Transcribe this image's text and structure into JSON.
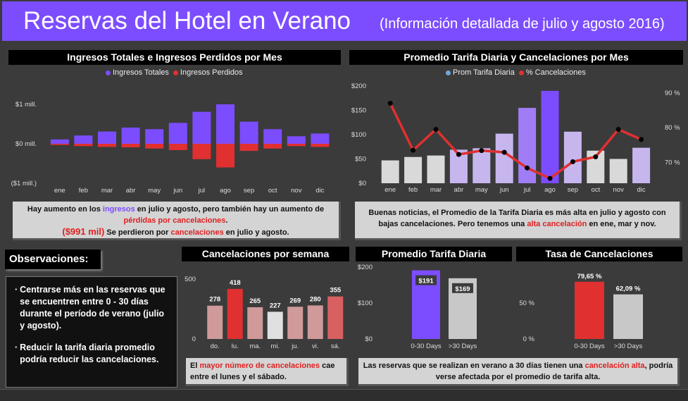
{
  "header": {
    "title": "Reservas del Hotel en Verano",
    "subtitle": "(Información detallada de julio y agosto 2016)"
  },
  "colors": {
    "purple": "#7c4dff",
    "red": "#e03030",
    "light_purple": "#c7b6ee",
    "gray": "#d9d9d9"
  },
  "panels": {
    "revenue": {
      "title": "Ingresos Totales e Ingresos Perdidos por Mes"
    },
    "rate": {
      "title": "Promedio Tarifa Diaria y Cancelaciones por Mes"
    },
    "weekly": {
      "title": "Cancelaciones por semana"
    },
    "adr": {
      "title": "Promedio Tarifa Diaria"
    },
    "cancel_rate": {
      "title": "Tasa de Cancelaciones"
    }
  },
  "notes": {
    "revenue": {
      "p1": "Hay aumento en los ",
      "p1_hl": "ingresos",
      "p2": " en julio y agosto, pero también hay un aumento de ",
      "p2_hl": "pérdidas por cancelaciones",
      "p3": ".",
      "amount": "($991 mil)",
      "p4": " Se perdieron por ",
      "p4_hl": "cancelaciones",
      "p5": " en julio y agosto."
    },
    "rate": {
      "p1": "Buenas noticias, el Promedio de la Tarifa Diaria es más alta en julio y agosto con bajas cancelaciones. Pero tenemos una ",
      "p1_hl": "alta cancelación",
      "p2": " en ene, mar y nov."
    },
    "weekly": {
      "p1": "El ",
      "p1_hl": "mayor número de cancelaciones",
      "p2": " cae entre el lunes y el sábado."
    },
    "summer": {
      "p1": "Las reservas que se realizan en verano a 30 días tienen una ",
      "p1_hl": "cancelación alta",
      "p2": ", podría verse afectada por el promedio de tarifa alta."
    }
  },
  "observations": {
    "title": "Observaciones:",
    "items": [
      "Centrarse más en las reservas que se encuentren entre 0 - 30 días durante el período de verano (julio y agosto).",
      "Reducir la tarifa diaria promedio podría reducir las cancelaciones."
    ]
  },
  "chart_data": [
    {
      "id": "revenue",
      "type": "bar",
      "title": "Ingresos Totales e Ingresos Perdidos por Mes",
      "categories": [
        "ene",
        "feb",
        "mar",
        "abr",
        "may",
        "jun",
        "jul",
        "ago",
        "sep",
        "oct",
        "nov",
        "dic"
      ],
      "series": [
        {
          "name": "Ingresos Totales",
          "color": "#7c4dff",
          "values": [
            0.11,
            0.21,
            0.31,
            0.41,
            0.37,
            0.53,
            0.81,
            1.0,
            0.56,
            0.37,
            0.19,
            0.26
          ]
        },
        {
          "name": "Ingresos Perdidos",
          "color": "#e03030",
          "values": [
            -0.03,
            -0.06,
            -0.08,
            -0.09,
            -0.12,
            -0.16,
            -0.39,
            -0.6,
            -0.18,
            -0.12,
            -0.06,
            -0.08
          ]
        }
      ],
      "yticks": [
        "$1 mill.",
        "$0 mill.",
        "($1 mill.)"
      ],
      "ylim": [
        -1,
        1
      ],
      "legend": "top"
    },
    {
      "id": "rate",
      "type": "bar",
      "title": "Promedio Tarifa Diaria y Cancelaciones por Mes",
      "categories": [
        "ene",
        "feb",
        "mar",
        "abr",
        "may",
        "jun",
        "jul",
        "ago",
        "sep",
        "oct",
        "nov",
        "dic"
      ],
      "series": [
        {
          "name": "Prom Tarifa Diaria",
          "color": "#6fa8dc",
          "values": [
            47,
            54,
            57,
            69,
            72,
            102,
            155,
            190,
            106,
            67,
            50,
            73
          ],
          "bar_colors": [
            "#d9d9d9",
            "#d9d9d9",
            "#d9d9d9",
            "#c7b6ee",
            "#c7b6ee",
            "#c7b6ee",
            "#a07df5",
            "#7c4dff",
            "#c7b6ee",
            "#d9d9d9",
            "#d9d9d9",
            "#c7b6ee"
          ]
        },
        {
          "name": "% Cancelaciones",
          "type": "line",
          "color": "#e03030",
          "values": [
            87,
            73.5,
            79.5,
            72.3,
            73.4,
            72.9,
            68.4,
            65.4,
            70.2,
            71.6,
            79.5,
            76.6
          ]
        }
      ],
      "yleft_ticks": [
        "$200",
        "$150",
        "$100",
        "$50",
        "$0"
      ],
      "yleft_lim": [
        0,
        200
      ],
      "yright_ticks": [
        "90 %",
        "80 %",
        "70 %"
      ],
      "yright_lim": [
        64,
        92
      ],
      "legend": "top"
    },
    {
      "id": "weekly",
      "type": "bar",
      "title": "Cancelaciones por semana",
      "categories": [
        "do.",
        "lu.",
        "ma.",
        "mi.",
        "ju.",
        "vi.",
        "sá."
      ],
      "values": [
        278,
        418,
        265,
        227,
        269,
        280,
        355
      ],
      "labels": [
        "278",
        "418",
        "265",
        "227",
        "269",
        "280",
        "355"
      ],
      "bar_colors": [
        "#d09a9a",
        "#e03030",
        "#d09a9a",
        "#e0e0e0",
        "#d09a9a",
        "#d09a9a",
        "#d86060"
      ],
      "yticks": [
        "500",
        "0"
      ],
      "ylim": [
        0,
        500
      ]
    },
    {
      "id": "adr",
      "type": "bar",
      "title": "Promedio Tarifa Diaria",
      "categories": [
        "0-30 Days",
        ">30 Days"
      ],
      "values": [
        191,
        169
      ],
      "labels": [
        "$191",
        "$169"
      ],
      "bar_colors": [
        "#7c4dff",
        "#c8c8c8"
      ],
      "yticks": [
        "$200",
        "$100",
        "$0"
      ],
      "ylim": [
        0,
        200
      ]
    },
    {
      "id": "cancel_rate",
      "type": "bar",
      "title": "Tasa de Cancelaciones",
      "categories": [
        "0-30 Days",
        ">30 Days"
      ],
      "values": [
        79.65,
        62.09
      ],
      "labels": [
        "79,65 %",
        "62,09 %"
      ],
      "bar_colors": [
        "#e03030",
        "#c8c8c8"
      ],
      "yticks": [
        "50 %",
        "0 %"
      ],
      "ylim": [
        0,
        100
      ]
    }
  ]
}
